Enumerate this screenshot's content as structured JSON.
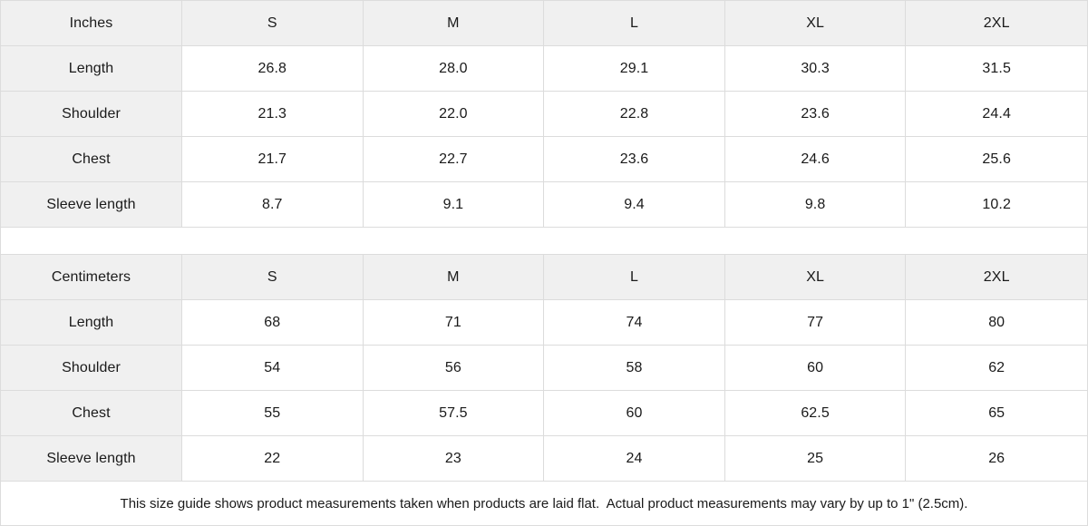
{
  "tables": [
    {
      "header": {
        "label": "Inches",
        "sizes": [
          "S",
          "M",
          "L",
          "XL",
          "2XL"
        ]
      },
      "rows": [
        {
          "label": "Length",
          "values": [
            "26.8",
            "28.0",
            "29.1",
            "30.3",
            "31.5"
          ]
        },
        {
          "label": "Shoulder",
          "values": [
            "21.3",
            "22.0",
            "22.8",
            "23.6",
            "24.4"
          ]
        },
        {
          "label": "Chest",
          "values": [
            "21.7",
            "22.7",
            "23.6",
            "24.6",
            "25.6"
          ]
        },
        {
          "label": "Sleeve length",
          "values": [
            "8.7",
            "9.1",
            "9.4",
            "9.8",
            "10.2"
          ]
        }
      ]
    },
    {
      "header": {
        "label": "Centimeters",
        "sizes": [
          "S",
          "M",
          "L",
          "XL",
          "2XL"
        ]
      },
      "rows": [
        {
          "label": "Length",
          "values": [
            "68",
            "71",
            "74",
            "77",
            "80"
          ]
        },
        {
          "label": "Shoulder",
          "values": [
            "54",
            "56",
            "58",
            "60",
            "62"
          ]
        },
        {
          "label": "Chest",
          "values": [
            "55",
            "57.5",
            "60",
            "62.5",
            "65"
          ]
        },
        {
          "label": "Sleeve length",
          "values": [
            "22",
            "23",
            "24",
            "25",
            "26"
          ]
        }
      ]
    }
  ],
  "footer": {
    "note": "This size guide shows product measurements taken when products are laid flat.  Actual product measurements may vary by up to 1\" (2.5cm)."
  },
  "colors": {
    "header_bg": "#f0f0f0",
    "border": "#dcdcdc",
    "text": "#1a1a1a"
  }
}
